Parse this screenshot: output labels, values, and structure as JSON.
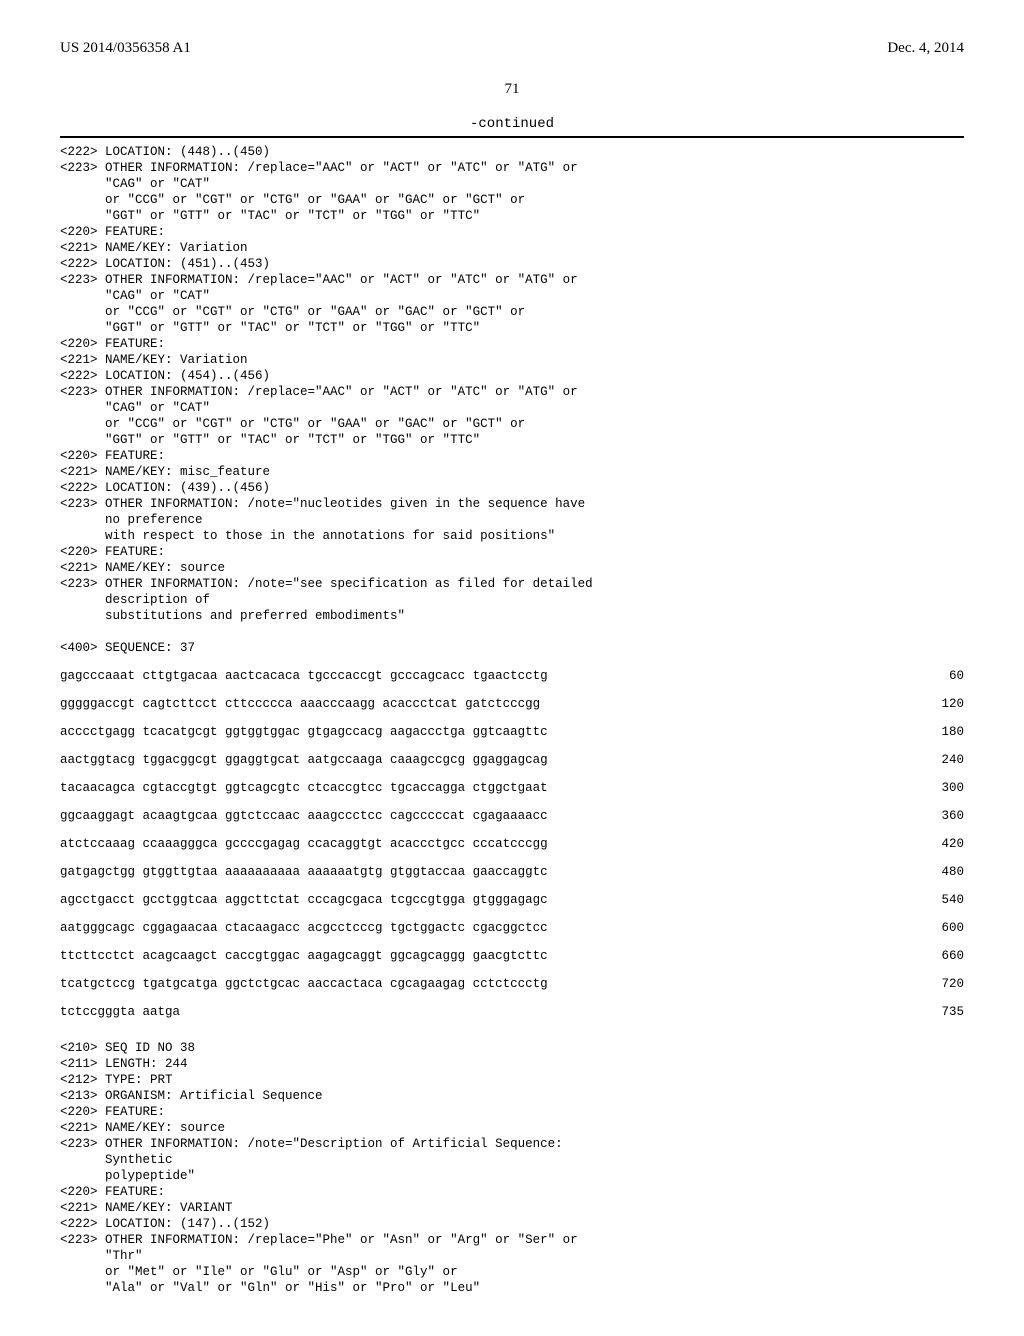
{
  "header": {
    "left": "US 2014/0356358 A1",
    "right": "Dec. 4, 2014"
  },
  "pagenum": "71",
  "continued": "-continued",
  "block1": "<222> LOCATION: (448)..(450)\n<223> OTHER INFORMATION: /replace=\"AAC\" or \"ACT\" or \"ATC\" or \"ATG\" or\n      \"CAG\" or \"CAT\"\n      or \"CCG\" or \"CGT\" or \"CTG\" or \"GAA\" or \"GAC\" or \"GCT\" or\n      \"GGT\" or \"GTT\" or \"TAC\" or \"TCT\" or \"TGG\" or \"TTC\"\n<220> FEATURE:\n<221> NAME/KEY: Variation\n<222> LOCATION: (451)..(453)\n<223> OTHER INFORMATION: /replace=\"AAC\" or \"ACT\" or \"ATC\" or \"ATG\" or\n      \"CAG\" or \"CAT\"\n      or \"CCG\" or \"CGT\" or \"CTG\" or \"GAA\" or \"GAC\" or \"GCT\" or\n      \"GGT\" or \"GTT\" or \"TAC\" or \"TCT\" or \"TGG\" or \"TTC\"\n<220> FEATURE:\n<221> NAME/KEY: Variation\n<222> LOCATION: (454)..(456)\n<223> OTHER INFORMATION: /replace=\"AAC\" or \"ACT\" or \"ATC\" or \"ATG\" or\n      \"CAG\" or \"CAT\"\n      or \"CCG\" or \"CGT\" or \"CTG\" or \"GAA\" or \"GAC\" or \"GCT\" or\n      \"GGT\" or \"GTT\" or \"TAC\" or \"TCT\" or \"TGG\" or \"TTC\"\n<220> FEATURE:\n<221> NAME/KEY: misc_feature\n<222> LOCATION: (439)..(456)\n<223> OTHER INFORMATION: /note=\"nucleotides given in the sequence have\n      no preference\n      with respect to those in the annotations for said positions\"\n<220> FEATURE:\n<221> NAME/KEY: source\n<223> OTHER INFORMATION: /note=\"see specification as filed for detailed\n      description of\n      substitutions and preferred embodiments\"\n\n<400> SEQUENCE: 37",
  "sequences": [
    {
      "seq": "gagcccaaat cttgtgacaa aactcacaca tgcccaccgt gcccagcacc tgaactcctg",
      "num": "60"
    },
    {
      "seq": "gggggaccgt cagtcttcct cttccccca aaacccaagg acaccctcat gatctcccgg",
      "num": "120"
    },
    {
      "seq": "acccctgagg tcacatgcgt ggtggtggac gtgagccacg aagaccctga ggtcaagttc",
      "num": "180"
    },
    {
      "seq": "aactggtacg tggacggcgt ggaggtgcat aatgccaaga caaagccgcg ggaggagcag",
      "num": "240"
    },
    {
      "seq": "tacaacagca cgtaccgtgt ggtcagcgtc ctcaccgtcc tgcaccagga ctggctgaat",
      "num": "300"
    },
    {
      "seq": "ggcaaggagt acaagtgcaa ggtctccaac aaagccctcc cagcccccat cgagaaaacc",
      "num": "360"
    },
    {
      "seq": "atctccaaag ccaaagggca gccccgagag ccacaggtgt acaccctgcc cccatcccgg",
      "num": "420"
    },
    {
      "seq": "gatgagctgg gtggttgtaa aaaaaaaaaa aaaaaatgtg gtggtaccaa gaaccaggtc",
      "num": "480"
    },
    {
      "seq": "agcctgacct gcctggtcaa aggcttctat cccagcgaca tcgccgtgga gtgggagagc",
      "num": "540"
    },
    {
      "seq": "aatgggcagc cggagaacaa ctacaagacc acgcctcccg tgctggactc cgacggctcc",
      "num": "600"
    },
    {
      "seq": "ttcttcctct acagcaagct caccgtggac aagagcaggt ggcagcaggg gaacgtcttc",
      "num": "660"
    },
    {
      "seq": "tcatgctccg tgatgcatga ggctctgcac aaccactaca cgcagaagag cctctccctg",
      "num": "720"
    },
    {
      "seq": "tctccgggta aatga",
      "num": "735"
    }
  ],
  "block2": "<210> SEQ ID NO 38\n<211> LENGTH: 244\n<212> TYPE: PRT\n<213> ORGANISM: Artificial Sequence\n<220> FEATURE:\n<221> NAME/KEY: source\n<223> OTHER INFORMATION: /note=\"Description of Artificial Sequence:\n      Synthetic\n      polypeptide\"\n<220> FEATURE:\n<221> NAME/KEY: VARIANT\n<222> LOCATION: (147)..(152)\n<223> OTHER INFORMATION: /replace=\"Phe\" or \"Asn\" or \"Arg\" or \"Ser\" or\n      \"Thr\"\n      or \"Met\" or \"Ile\" or \"Glu\" or \"Asp\" or \"Gly\" or\n      \"Ala\" or \"Val\" or \"Gln\" or \"His\" or \"Pro\" or \"Leu\""
}
